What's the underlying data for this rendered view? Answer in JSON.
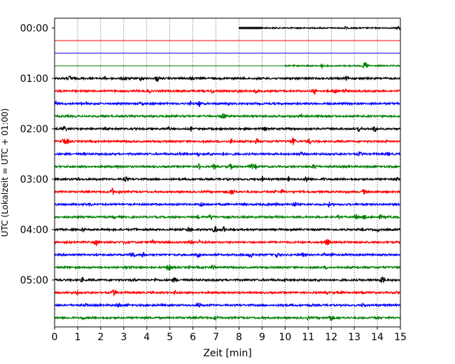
{
  "chart_data": {
    "type": "line",
    "subtype": "helicorder",
    "xlabel": "Zeit  [min]",
    "ylabel": "UTC (Lokalzeit = UTC + 01:00)",
    "xlim": [
      0,
      15
    ],
    "x_ticks": [
      0,
      1,
      2,
      3,
      4,
      5,
      6,
      7,
      8,
      9,
      10,
      11,
      12,
      13,
      14,
      15
    ],
    "x_grid": true,
    "y_grid": false,
    "row_interval_minutes": 15,
    "y_tick_labels": [
      "00:00",
      "01:00",
      "02:00",
      "03:00",
      "04:00",
      "05:00"
    ],
    "color_cycle": [
      "#000000",
      "#ff0000",
      "#0000ff",
      "#008000"
    ],
    "rows": [
      {
        "start": "00:00",
        "color": "#000000",
        "data_from_min": 8.0,
        "activity": "low"
      },
      {
        "start": "00:15",
        "color": "#ff0000",
        "data_from_min": 0,
        "activity": "flat"
      },
      {
        "start": "00:30",
        "color": "#0000ff",
        "data_from_min": 0,
        "activity": "flat"
      },
      {
        "start": "00:45",
        "color": "#008000",
        "data_from_min": 10.0,
        "activity": "low",
        "flat_before_data": true
      },
      {
        "start": "01:00",
        "color": "#000000",
        "data_from_min": 0,
        "activity": "normal"
      },
      {
        "start": "01:15",
        "color": "#ff0000",
        "data_from_min": 0,
        "activity": "normal"
      },
      {
        "start": "01:30",
        "color": "#0000ff",
        "data_from_min": 0,
        "activity": "normal"
      },
      {
        "start": "01:45",
        "color": "#008000",
        "data_from_min": 0,
        "activity": "normal"
      },
      {
        "start": "02:00",
        "color": "#000000",
        "data_from_min": 0,
        "activity": "normal"
      },
      {
        "start": "02:15",
        "color": "#ff0000",
        "data_from_min": 0,
        "activity": "normal"
      },
      {
        "start": "02:30",
        "color": "#0000ff",
        "data_from_min": 0,
        "activity": "normal"
      },
      {
        "start": "02:45",
        "color": "#008000",
        "data_from_min": 0,
        "activity": "normal"
      },
      {
        "start": "03:00",
        "color": "#000000",
        "data_from_min": 0,
        "activity": "normal"
      },
      {
        "start": "03:15",
        "color": "#ff0000",
        "data_from_min": 0,
        "activity": "normal"
      },
      {
        "start": "03:30",
        "color": "#0000ff",
        "data_from_min": 0,
        "activity": "normal"
      },
      {
        "start": "03:45",
        "color": "#008000",
        "data_from_min": 0,
        "activity": "normal"
      },
      {
        "start": "04:00",
        "color": "#000000",
        "data_from_min": 0,
        "activity": "normal"
      },
      {
        "start": "04:15",
        "color": "#ff0000",
        "data_from_min": 0,
        "activity": "normal"
      },
      {
        "start": "04:30",
        "color": "#0000ff",
        "data_from_min": 0,
        "activity": "normal"
      },
      {
        "start": "04:45",
        "color": "#008000",
        "data_from_min": 0,
        "activity": "normal"
      },
      {
        "start": "05:00",
        "color": "#000000",
        "data_from_min": 0,
        "activity": "normal"
      },
      {
        "start": "05:15",
        "color": "#ff0000",
        "data_from_min": 0,
        "activity": "normal"
      },
      {
        "start": "05:30",
        "color": "#0000ff",
        "data_from_min": 0,
        "activity": "normal"
      },
      {
        "start": "05:45",
        "color": "#008000",
        "data_from_min": 0,
        "activity": "normal"
      }
    ]
  }
}
